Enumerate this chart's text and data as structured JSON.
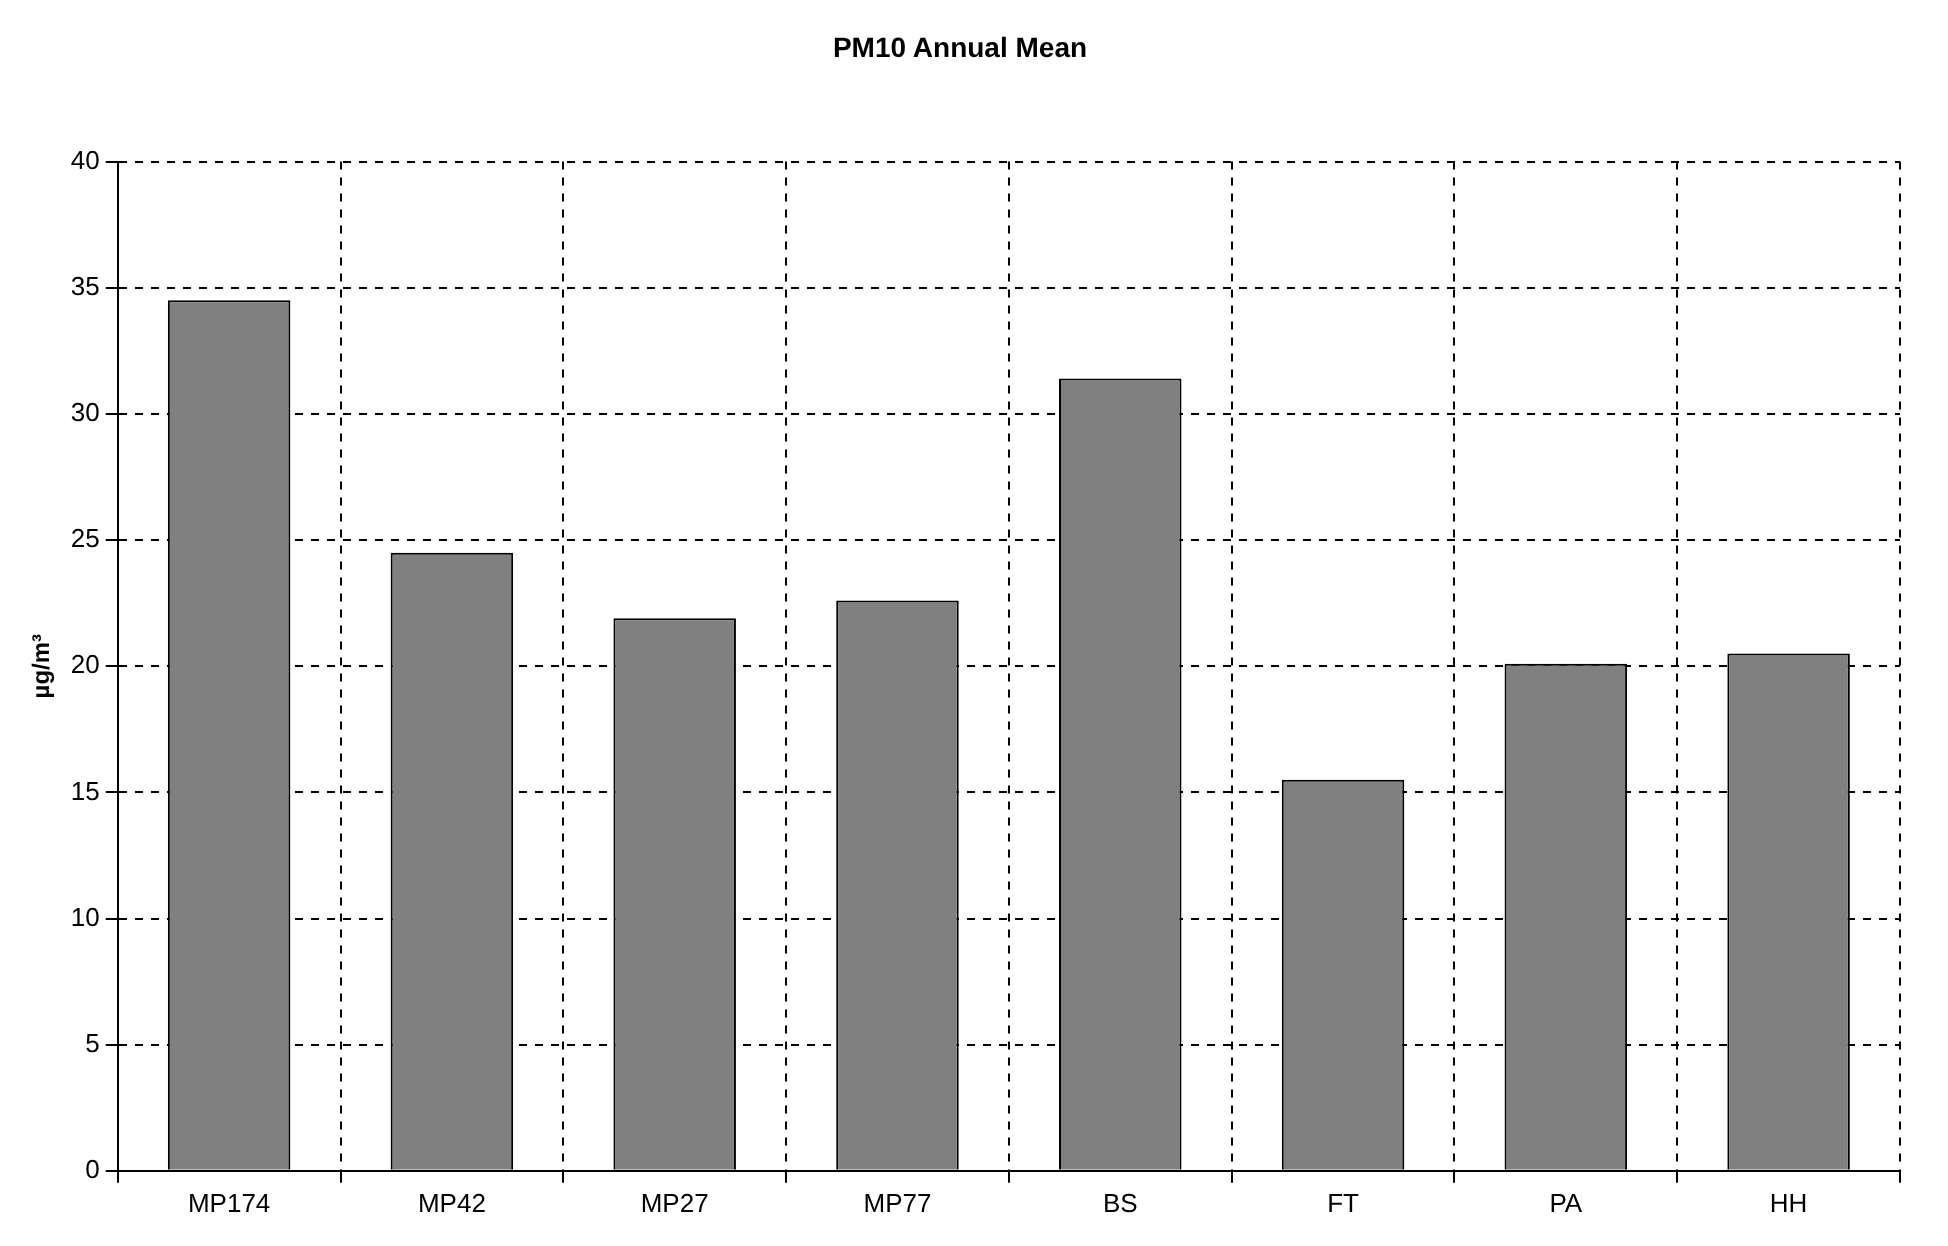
{
  "chart_data": {
    "type": "bar",
    "title": "PM10 Annual Mean",
    "ylabel": "µg/m³",
    "categories": [
      "MP174",
      "MP42",
      "MP27",
      "MP77",
      "BS",
      "FT",
      "PA",
      "HH"
    ],
    "values": [
      34.5,
      24.5,
      21.9,
      22.6,
      31.4,
      15.5,
      20.1,
      20.5
    ],
    "color": "#808080",
    "ylim": [
      0,
      40
    ],
    "yticks": [
      0,
      5,
      10,
      15,
      20,
      25,
      30,
      35,
      40
    ],
    "grid": true,
    "legend": false
  }
}
